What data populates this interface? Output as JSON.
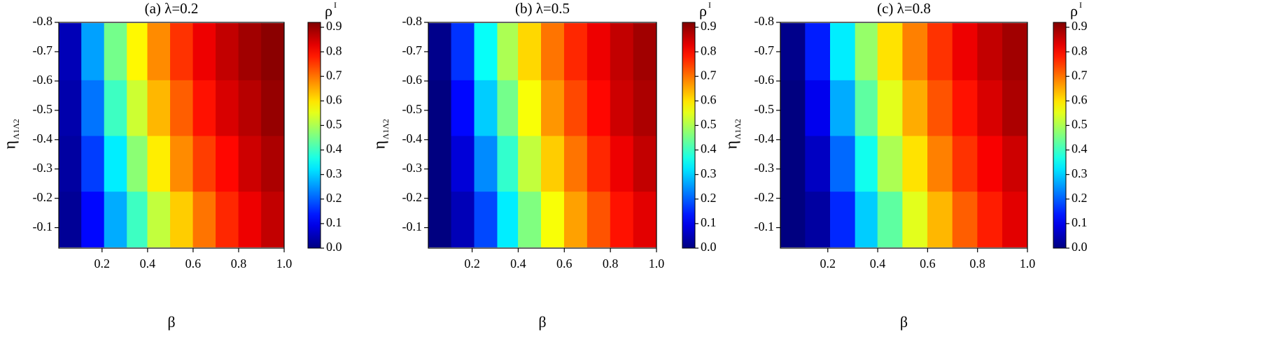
{
  "chart_data": [
    {
      "type": "heatmap",
      "title": "(a) λ=0.2",
      "xlabel": "β",
      "ylabel": "η",
      "ylabel_sub": "Λ1Λ2",
      "colorbar_label": "ρ",
      "colorbar_label_sup": "I",
      "colormap": "jet",
      "x": [
        0.06,
        0.16,
        0.26,
        0.36,
        0.45,
        0.55,
        0.65,
        0.75,
        0.85,
        0.95
      ],
      "y": [
        -0.13,
        -0.32,
        -0.51,
        -0.7
      ],
      "z": [
        [
          0.02,
          0.12,
          0.27,
          0.4,
          0.52,
          0.62,
          0.7,
          0.77,
          0.82,
          0.86
        ],
        [
          0.03,
          0.17,
          0.33,
          0.47,
          0.59,
          0.68,
          0.75,
          0.8,
          0.85,
          0.88
        ],
        [
          0.04,
          0.22,
          0.4,
          0.53,
          0.64,
          0.72,
          0.79,
          0.84,
          0.87,
          0.9
        ],
        [
          0.05,
          0.26,
          0.45,
          0.58,
          0.68,
          0.76,
          0.82,
          0.86,
          0.89,
          0.91
        ]
      ],
      "xlim": [
        0.01,
        1.0
      ],
      "xticks": [
        0.2,
        0.4,
        0.6,
        0.8,
        {
          "value": 1.0,
          "label": "1.0"
        }
      ],
      "ylim": [
        -0.03,
        -0.8
      ],
      "yticks": [
        -0.1,
        -0.2,
        -0.3,
        -0.4,
        -0.5,
        -0.6,
        -0.7,
        -0.8
      ],
      "zlim": [
        0,
        0.92
      ],
      "zticks": [
        {
          "value": 0,
          "label": "0.0"
        },
        0.1,
        0.2,
        0.3,
        0.4,
        0.5,
        0.6,
        0.7,
        0.8,
        0.9
      ]
    },
    {
      "type": "heatmap",
      "title": "(b) λ=0.5",
      "xlabel": "β",
      "ylabel": "η",
      "ylabel_sub": "Λ1Λ2",
      "colorbar_label": "ρ",
      "colorbar_label_sup": "I",
      "colormap": "jet",
      "x": [
        0.06,
        0.16,
        0.26,
        0.36,
        0.45,
        0.55,
        0.65,
        0.75,
        0.85,
        0.95
      ],
      "y": [
        -0.13,
        -0.32,
        -0.51,
        -0.7
      ],
      "z": [
        [
          0.0,
          0.05,
          0.18,
          0.33,
          0.46,
          0.57,
          0.66,
          0.73,
          0.79,
          0.83
        ],
        [
          0.0,
          0.08,
          0.24,
          0.39,
          0.52,
          0.62,
          0.7,
          0.77,
          0.82,
          0.86
        ],
        [
          0.0,
          0.12,
          0.3,
          0.45,
          0.57,
          0.67,
          0.74,
          0.8,
          0.85,
          0.88
        ],
        [
          0.01,
          0.16,
          0.35,
          0.5,
          0.61,
          0.7,
          0.77,
          0.82,
          0.86,
          0.89
        ]
      ],
      "xlim": [
        0.01,
        1.0
      ],
      "xticks": [
        0.2,
        0.4,
        0.6,
        0.8,
        {
          "value": 1.0,
          "label": "1.0"
        }
      ],
      "ylim": [
        -0.03,
        -0.8
      ],
      "yticks": [
        -0.1,
        -0.2,
        -0.3,
        -0.4,
        -0.5,
        -0.6,
        -0.7,
        -0.8
      ],
      "zlim": [
        0,
        0.92
      ],
      "zticks": [
        {
          "value": 0,
          "label": "0.0"
        },
        0.1,
        0.2,
        0.3,
        0.4,
        0.5,
        0.6,
        0.7,
        0.8,
        0.9
      ]
    },
    {
      "type": "heatmap",
      "title": "(c) λ=0.8",
      "xlabel": "β",
      "ylabel": "η",
      "ylabel_sub": "Λ1Λ2",
      "colorbar_label": "ρ",
      "colorbar_label_sup": "I",
      "colormap": "jet",
      "x": [
        0.06,
        0.16,
        0.26,
        0.36,
        0.45,
        0.55,
        0.65,
        0.75,
        0.85,
        0.95
      ],
      "y": [
        -0.13,
        -0.32,
        -0.51,
        -0.7
      ],
      "z": [
        [
          0.0,
          0.03,
          0.15,
          0.3,
          0.43,
          0.55,
          0.64,
          0.72,
          0.78,
          0.83
        ],
        [
          0.0,
          0.06,
          0.21,
          0.36,
          0.5,
          0.6,
          0.69,
          0.76,
          0.81,
          0.85
        ],
        [
          0.0,
          0.1,
          0.27,
          0.43,
          0.55,
          0.65,
          0.73,
          0.79,
          0.84,
          0.88
        ],
        [
          0.01,
          0.14,
          0.33,
          0.48,
          0.6,
          0.69,
          0.76,
          0.82,
          0.86,
          0.89
        ]
      ],
      "xlim": [
        0.01,
        1.0
      ],
      "xticks": [
        0.2,
        0.4,
        0.6,
        0.8,
        {
          "value": 1.0,
          "label": "1.0"
        }
      ],
      "ylim": [
        -0.03,
        -0.8
      ],
      "yticks": [
        -0.1,
        -0.2,
        -0.3,
        -0.4,
        -0.5,
        -0.6,
        -0.7,
        -0.8
      ],
      "zlim": [
        0,
        0.92
      ],
      "zticks": [
        {
          "value": 0,
          "label": "0.0"
        },
        0.1,
        0.2,
        0.3,
        0.4,
        0.5,
        0.6,
        0.7,
        0.8,
        0.9
      ]
    }
  ]
}
